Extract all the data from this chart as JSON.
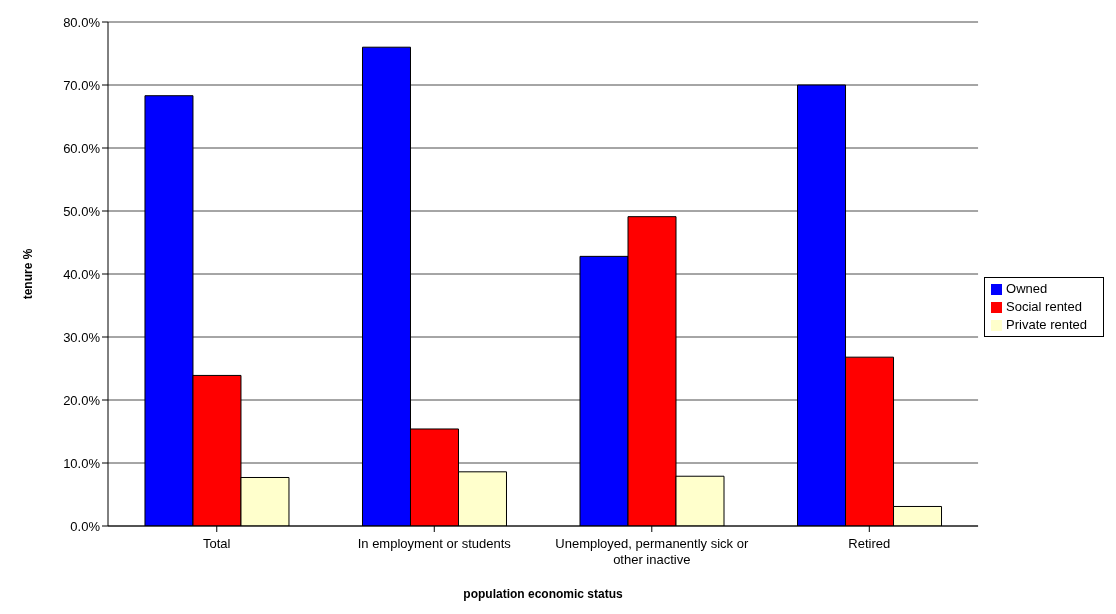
{
  "chart_data": {
    "type": "bar",
    "xlabel": "population economic status",
    "ylabel": "tenure %",
    "categories": [
      "Total",
      "In employment or students",
      "Unemployed, permanently sick or other inactive",
      "Retired"
    ],
    "series": [
      {
        "name": "Owned",
        "color": "#0000ff",
        "values": [
          68.3,
          76.0,
          42.8,
          70.0
        ]
      },
      {
        "name": "Social rented",
        "color": "#ff0000",
        "values": [
          23.9,
          15.4,
          49.1,
          26.8
        ]
      },
      {
        "name": "Private rented",
        "color": "#ffffcc",
        "values": [
          7.7,
          8.6,
          7.9,
          3.1
        ]
      }
    ],
    "ylim": [
      0,
      80
    ],
    "yticks": [
      {
        "value": 0,
        "label": "0.0%"
      },
      {
        "value": 10,
        "label": "10.0%"
      },
      {
        "value": 20,
        "label": "20.0%"
      },
      {
        "value": 30,
        "label": "30.0%"
      },
      {
        "value": 40,
        "label": "40.0%"
      },
      {
        "value": 50,
        "label": "50.0%"
      },
      {
        "value": 60,
        "label": "60.0%"
      },
      {
        "value": 70,
        "label": "70.0%"
      },
      {
        "value": 80,
        "label": "80.0%"
      }
    ],
    "grid": "y",
    "legend": "right"
  }
}
